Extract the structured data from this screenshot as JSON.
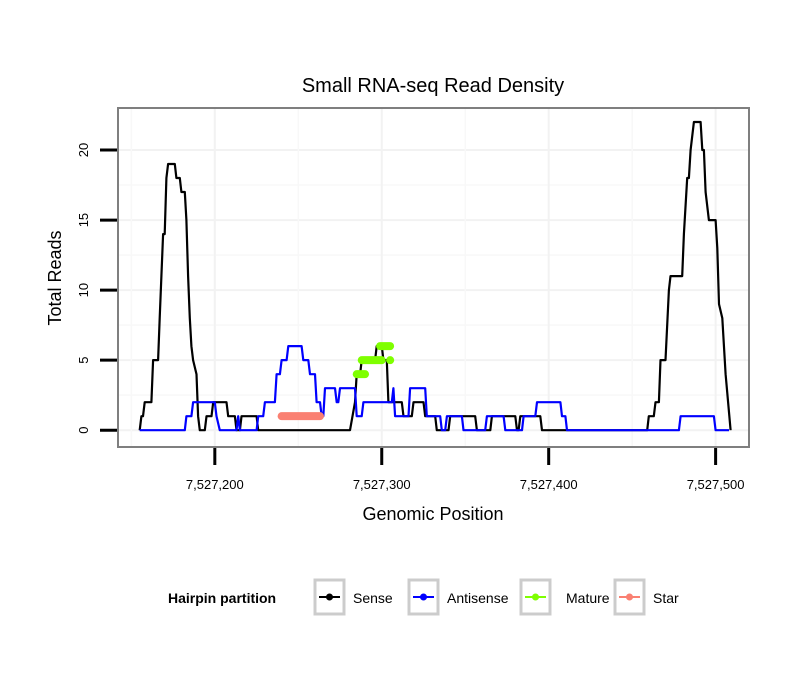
{
  "chart_data": {
    "type": "line",
    "title": "Small RNA-seq Read Density",
    "xlabel": "Genomic Position",
    "ylabel": "Total Reads",
    "xlim": [
      7527142,
      7527520
    ],
    "ylim": [
      -1.2,
      23
    ],
    "xticks": [
      7527200,
      7527300,
      7527400,
      7527500
    ],
    "xtick_labels": [
      "7,527,200",
      "7,527,300",
      "7,527,400",
      "7,527,500"
    ],
    "yticks": [
      0,
      5,
      10,
      15,
      20
    ],
    "ytick_labels": [
      "0",
      "5",
      "10",
      "15",
      "20"
    ],
    "grid": true,
    "legend": {
      "title": "Hairpin partition",
      "position": "bottom",
      "entries": [
        {
          "label": "Sense",
          "color": "#000000"
        },
        {
          "label": "Antisense",
          "color": "#0000ff"
        },
        {
          "label": "Mature",
          "color": "#7fff00"
        },
        {
          "label": "Star",
          "color": "#fa8072"
        }
      ]
    },
    "series": [
      {
        "name": "Sense",
        "color": "#000000",
        "style": "line",
        "points": [
          [
            7527155,
            0
          ],
          [
            7527156,
            1
          ],
          [
            7527157,
            1
          ],
          [
            7527158,
            2
          ],
          [
            7527162,
            2
          ],
          [
            7527163,
            5
          ],
          [
            7527166,
            5
          ],
          [
            7527167,
            8
          ],
          [
            7527168,
            11
          ],
          [
            7527169,
            14
          ],
          [
            7527170,
            14
          ],
          [
            7527171,
            18
          ],
          [
            7527172,
            19
          ],
          [
            7527176,
            19
          ],
          [
            7527177,
            18
          ],
          [
            7527179,
            18
          ],
          [
            7527180,
            17
          ],
          [
            7527182,
            17
          ],
          [
            7527183,
            15
          ],
          [
            7527184,
            11
          ],
          [
            7527185,
            8
          ],
          [
            7527186,
            6
          ],
          [
            7527187,
            5
          ],
          [
            7527189,
            4
          ],
          [
            7527190,
            1
          ],
          [
            7527191,
            0
          ],
          [
            7527194,
            0
          ],
          [
            7527195,
            1
          ],
          [
            7527198,
            1
          ],
          [
            7527199,
            2
          ],
          [
            7527207,
            2
          ],
          [
            7527208,
            1
          ],
          [
            7527212,
            1
          ],
          [
            7527213,
            0
          ],
          [
            7527215,
            0
          ],
          [
            7527216,
            1
          ],
          [
            7527225,
            1
          ],
          [
            7527226,
            0
          ],
          [
            7527250,
            0
          ],
          [
            7527251,
            0
          ],
          [
            7527281,
            0
          ],
          [
            7527284,
            2
          ],
          [
            7527285,
            4
          ],
          [
            7527287,
            4
          ],
          [
            7527288,
            5
          ],
          [
            7527296,
            5
          ],
          [
            7527297,
            6
          ],
          [
            7527300,
            6
          ],
          [
            7527301,
            5
          ],
          [
            7527303,
            5
          ],
          [
            7527304,
            2
          ],
          [
            7527312,
            2
          ],
          [
            7527313,
            1
          ],
          [
            7527318,
            1
          ],
          [
            7527319,
            2
          ],
          [
            7527325,
            2
          ],
          [
            7527326,
            1
          ],
          [
            7527332,
            1
          ],
          [
            7527333,
            0
          ],
          [
            7527340,
            0
          ],
          [
            7527341,
            1
          ],
          [
            7527356,
            1
          ],
          [
            7527357,
            0
          ],
          [
            7527365,
            0
          ],
          [
            7527366,
            1
          ],
          [
            7527380,
            1
          ],
          [
            7527381,
            0
          ],
          [
            7527382,
            0
          ],
          [
            7527383,
            1
          ],
          [
            7527395,
            1
          ],
          [
            7527396,
            0
          ],
          [
            7527459,
            0
          ],
          [
            7527460,
            1
          ],
          [
            7527463,
            1
          ],
          [
            7527464,
            2
          ],
          [
            7527466,
            2
          ],
          [
            7527467,
            5
          ],
          [
            7527470,
            5
          ],
          [
            7527472,
            10
          ],
          [
            7527473,
            11
          ],
          [
            7527480,
            11
          ],
          [
            7527481,
            14
          ],
          [
            7527483,
            18
          ],
          [
            7527484,
            18
          ],
          [
            7527485,
            20
          ],
          [
            7527487,
            22
          ],
          [
            7527491,
            22
          ],
          [
            7527492,
            20
          ],
          [
            7527493,
            20
          ],
          [
            7527494,
            17
          ],
          [
            7527496,
            15
          ],
          [
            7527497,
            15
          ],
          [
            7527500,
            15
          ],
          [
            7527501,
            13
          ],
          [
            7527502,
            9
          ],
          [
            7527504,
            8
          ],
          [
            7527506,
            4
          ],
          [
            7527509,
            0
          ]
        ]
      },
      {
        "name": "Antisense",
        "color": "#0000ff",
        "style": "line",
        "points": [
          [
            7527155,
            0
          ],
          [
            7527182,
            0
          ],
          [
            7527183,
            1
          ],
          [
            7527186,
            1
          ],
          [
            7527187,
            2
          ],
          [
            7527200,
            2
          ],
          [
            7527201,
            1
          ],
          [
            7527203,
            0
          ],
          [
            7527213,
            0
          ],
          [
            7527214,
            1
          ],
          [
            7527215,
            0
          ],
          [
            7527225,
            0
          ],
          [
            7527226,
            1
          ],
          [
            7527229,
            1
          ],
          [
            7527230,
            2
          ],
          [
            7527236,
            2
          ],
          [
            7527237,
            4
          ],
          [
            7527239,
            4
          ],
          [
            7527240,
            5
          ],
          [
            7527243,
            5
          ],
          [
            7527244,
            6
          ],
          [
            7527252,
            6
          ],
          [
            7527253,
            5
          ],
          [
            7527256,
            5
          ],
          [
            7527257,
            4
          ],
          [
            7527260,
            4
          ],
          [
            7527261,
            2
          ],
          [
            7527263,
            2
          ],
          [
            7527264,
            1
          ],
          [
            7527265,
            1
          ],
          [
            7527266,
            3
          ],
          [
            7527272,
            3
          ],
          [
            7527273,
            2
          ],
          [
            7527274,
            2
          ],
          [
            7527275,
            3
          ],
          [
            7527284,
            3
          ],
          [
            7527285,
            1
          ],
          [
            7527288,
            1
          ],
          [
            7527289,
            2
          ],
          [
            7527306,
            2
          ],
          [
            7527307,
            3
          ],
          [
            7527308,
            1
          ],
          [
            7527316,
            1
          ],
          [
            7527317,
            3
          ],
          [
            7527326,
            3
          ],
          [
            7527327,
            1
          ],
          [
            7527335,
            1
          ],
          [
            7527336,
            0
          ],
          [
            7527338,
            0
          ],
          [
            7527339,
            1
          ],
          [
            7527348,
            1
          ],
          [
            7527349,
            0
          ],
          [
            7527362,
            0
          ],
          [
            7527363,
            1
          ],
          [
            7527373,
            1
          ],
          [
            7527374,
            0
          ],
          [
            7527384,
            0
          ],
          [
            7527385,
            1
          ],
          [
            7527391,
            1
          ],
          [
            7527392,
            1
          ],
          [
            7527393,
            2
          ],
          [
            7527407,
            2
          ],
          [
            7527408,
            1
          ],
          [
            7527410,
            1
          ],
          [
            7527411,
            0
          ],
          [
            7527424,
            0
          ],
          [
            7527425,
            0
          ],
          [
            7527466,
            0
          ],
          [
            7527467,
            0
          ],
          [
            7527478,
            0
          ],
          [
            7527479,
            1
          ],
          [
            7527499,
            1
          ],
          [
            7527500,
            0
          ],
          [
            7527508,
            0
          ]
        ]
      },
      {
        "name": "Mature",
        "color": "#7fff00",
        "style": "thick-segments",
        "segments": [
          [
            7527285,
            7527290,
            4
          ],
          [
            7527288,
            7527300,
            5
          ],
          [
            7527299,
            7527305,
            6
          ],
          [
            7527305,
            7527305,
            5
          ]
        ]
      },
      {
        "name": "Star",
        "color": "#fa8072",
        "style": "thick-segments",
        "segments": [
          [
            7527240,
            7527263,
            1
          ]
        ]
      }
    ]
  }
}
